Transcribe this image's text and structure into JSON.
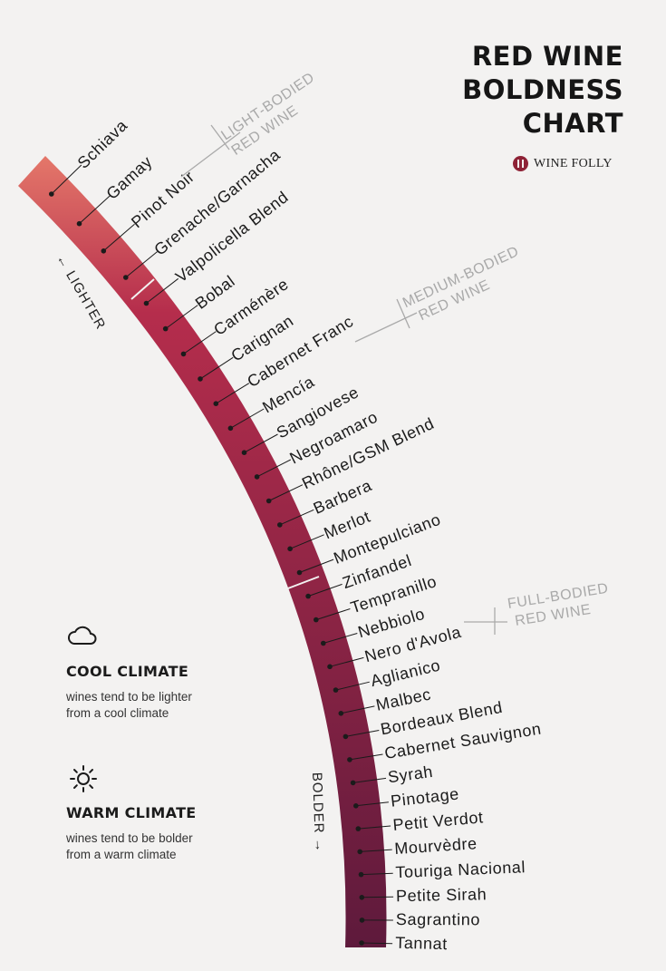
{
  "title": {
    "line1": "RED WINE",
    "line2": "BOLDNESS",
    "line3": "CHART"
  },
  "brand": {
    "name": "WINE FOLLY",
    "color": "#8e2236"
  },
  "direction": {
    "lighter": "← LIGHTER",
    "bolder": "BOLDER →"
  },
  "groups": [
    {
      "line1": "LIGHT-BODIED",
      "line2": "RED WINE"
    },
    {
      "line1": "MEDIUM-BODIED",
      "line2": "RED WINE"
    },
    {
      "line1": "FULL-BODIED",
      "line2": "RED WINE"
    }
  ],
  "wines": [
    "Schiava",
    "Gamay",
    "Pinot Noir",
    "Grenache/Garnacha",
    "Valpolicella Blend",
    "Bobal",
    "Carménère",
    "Carignan",
    "Cabernet Franc",
    "Mencía",
    "Sangiovese",
    "Negroamaro",
    "Rhône/GSM Blend",
    "Barbera",
    "Merlot",
    "Montepulciano",
    "Zinfandel",
    "Tempranillo",
    "Nebbiolo",
    "Nero d'Avola",
    "Aglianico",
    "Malbec",
    "Bordeaux Blend",
    "Cabernet Sauvignon",
    "Syrah",
    "Pinotage",
    "Petit Verdot",
    "Mourvèdre",
    "Touriga Nacional",
    "Petite Sirah",
    "Sagrantino",
    "Tannat"
  ],
  "gradient": {
    "light": "#e5786a",
    "mid": "#b52d4c",
    "dark": "#5e1a3c"
  },
  "legend": {
    "cool": {
      "icon": "cloud-icon",
      "title": "COOL CLIMATE",
      "line1": "wines tend to be lighter",
      "line2": "from a cool climate"
    },
    "warm": {
      "icon": "sun-icon",
      "title": "WARM CLIMATE",
      "line1": "wines tend to be bolder",
      "line2": "from a warm climate"
    }
  }
}
